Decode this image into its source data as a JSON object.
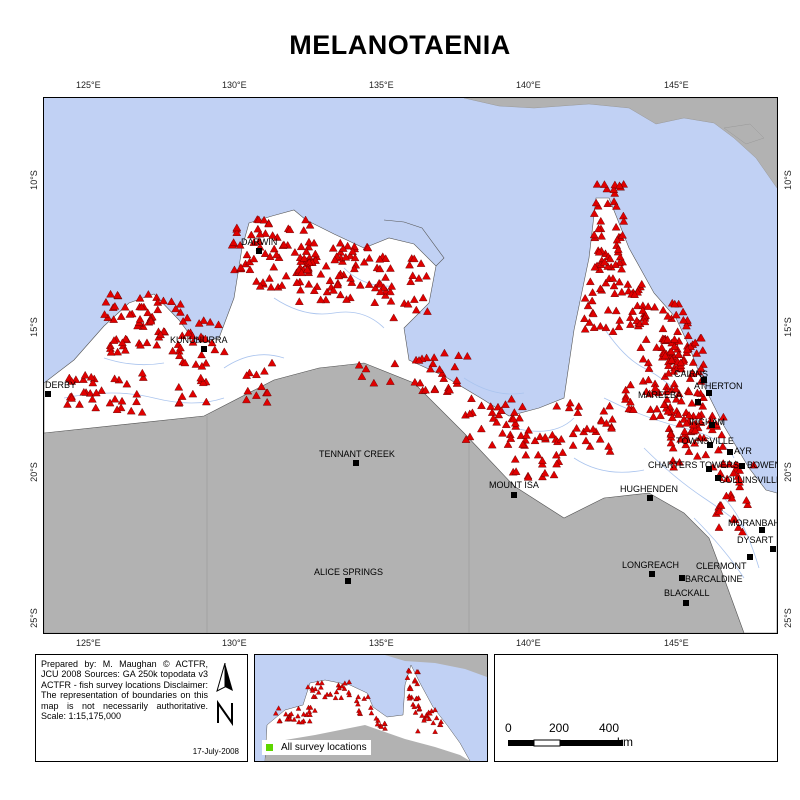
{
  "title": "MELANOTAENIA",
  "graticule": {
    "longitudes": [
      "125°E",
      "130°E",
      "135°E",
      "140°E",
      "145°E"
    ],
    "latitudes": [
      "10°S",
      "15°S",
      "20°S",
      "25°S"
    ]
  },
  "towns": [
    {
      "name": "DARWIN"
    },
    {
      "name": "KUNUNURRA"
    },
    {
      "name": "DERBY"
    },
    {
      "name": "TENNANT CREEK"
    },
    {
      "name": "ALICE SPRINGS"
    },
    {
      "name": "MOUNT ISA"
    },
    {
      "name": "CAIRNS"
    },
    {
      "name": "ATHERTON"
    },
    {
      "name": "MAREEBA"
    },
    {
      "name": "INGHAM"
    },
    {
      "name": "TOWNSVILLE"
    },
    {
      "name": "AYR"
    },
    {
      "name": "BOWEN"
    },
    {
      "name": "CHARTERS TOWERS"
    },
    {
      "name": "COLLINSVILLE"
    },
    {
      "name": "HUGHENDEN"
    },
    {
      "name": "MORANBAH"
    },
    {
      "name": "DYSART"
    },
    {
      "name": "CLERMONT"
    },
    {
      "name": "LONGREACH"
    },
    {
      "name": "BARCALDINE"
    },
    {
      "name": "BLACKALL"
    }
  ],
  "credits": {
    "text": "Prepared by: M. Maughan © ACTFR, JCU 2008 Sources: GA 250k topodata v3 ACTFR - fish survey locations Disclaimer: The representation of boundaries on this map is not necessarily authoritative. Scale: 1:15,175,000",
    "date": "17-July-2008"
  },
  "legend": {
    "label": "All survey locations",
    "swatch_color": "#5dd600"
  },
  "scalebar": {
    "labels": [
      "0",
      "200",
      "400"
    ],
    "unit": "km"
  },
  "colors": {
    "sea": "#c1d1f4",
    "land_in_region": "#ffffff",
    "land_outside": "#b2b2b2",
    "survey_marker": "#e00000",
    "river": "#aac4ee"
  }
}
